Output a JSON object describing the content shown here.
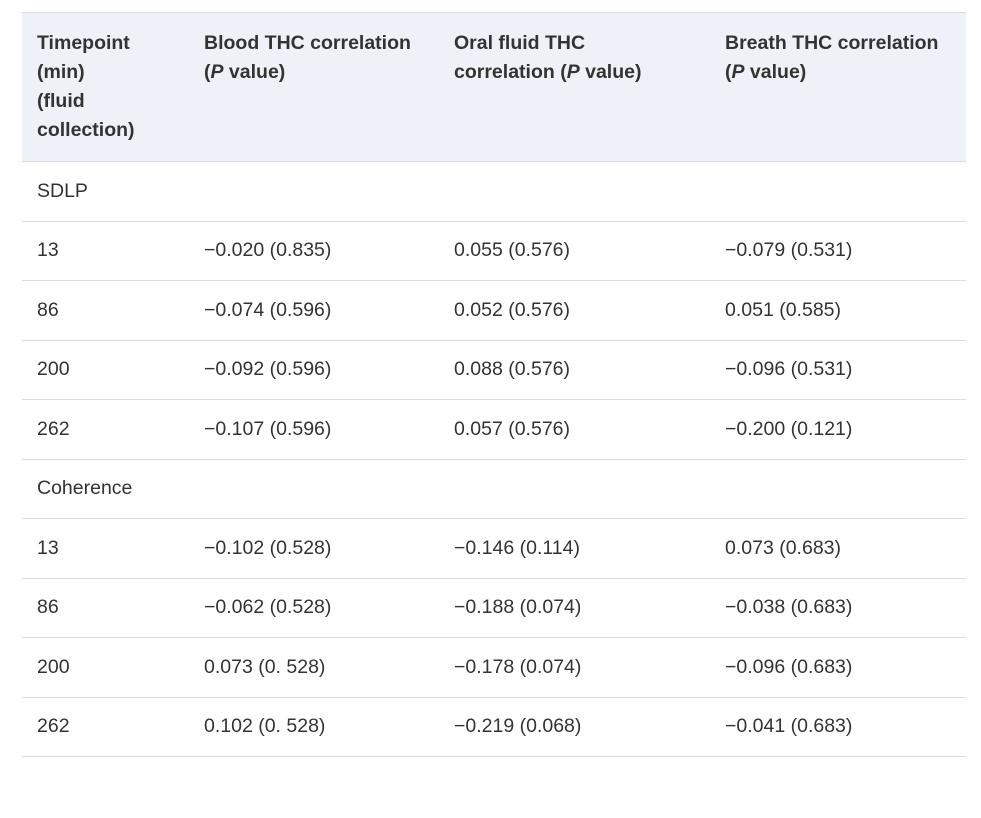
{
  "table": {
    "headers": {
      "timepoint_line1": "Timepoint",
      "timepoint_line2": "(min)",
      "timepoint_line3": "(fluid",
      "timepoint_line4": "collection)",
      "blood_line1": "Blood THC correlation",
      "blood_p": "P",
      "blood_value": " value)",
      "oral_line1": "Oral fluid THC",
      "oral_line2_pre": "correlation (",
      "oral_p": "P",
      "oral_value": " value)",
      "breath_line1": "Breath THC correlation",
      "breath_p": "P",
      "breath_value": " value)"
    },
    "sections": [
      {
        "label": "SDLP",
        "rows": [
          {
            "timepoint": "13",
            "blood": "−0.020 (0.835)",
            "oral": "0.055 (0.576)",
            "breath": "−0.079 (0.531)"
          },
          {
            "timepoint": "86",
            "blood": "−0.074 (0.596)",
            "oral": "0.052 (0.576)",
            "breath": "0.051 (0.585)"
          },
          {
            "timepoint": "200",
            "blood": "−0.092 (0.596)",
            "oral": "0.088 (0.576)",
            "breath": "−0.096 (0.531)"
          },
          {
            "timepoint": "262",
            "blood": "−0.107 (0.596)",
            "oral": "0.057 (0.576)",
            "breath": "−0.200 (0.121)"
          }
        ]
      },
      {
        "label": "Coherence",
        "rows": [
          {
            "timepoint": "13",
            "blood": "−0.102 (0.528)",
            "oral": "−0.146 (0.114)",
            "breath": "0.073 (0.683)"
          },
          {
            "timepoint": "86",
            "blood": "−0.062 (0.528)",
            "oral": "−0.188 (0.074)",
            "breath": "−0.038 (0.683)"
          },
          {
            "timepoint": "200",
            "blood": "0.073 (0. 528)",
            "oral": "−0.178 (0.074)",
            "breath": "−0.096 (0.683)"
          },
          {
            "timepoint": "262",
            "blood": "0.102 (0. 528)",
            "oral": "−0.219 (0.068)",
            "breath": "−0.041 (0.683)"
          }
        ]
      }
    ]
  }
}
